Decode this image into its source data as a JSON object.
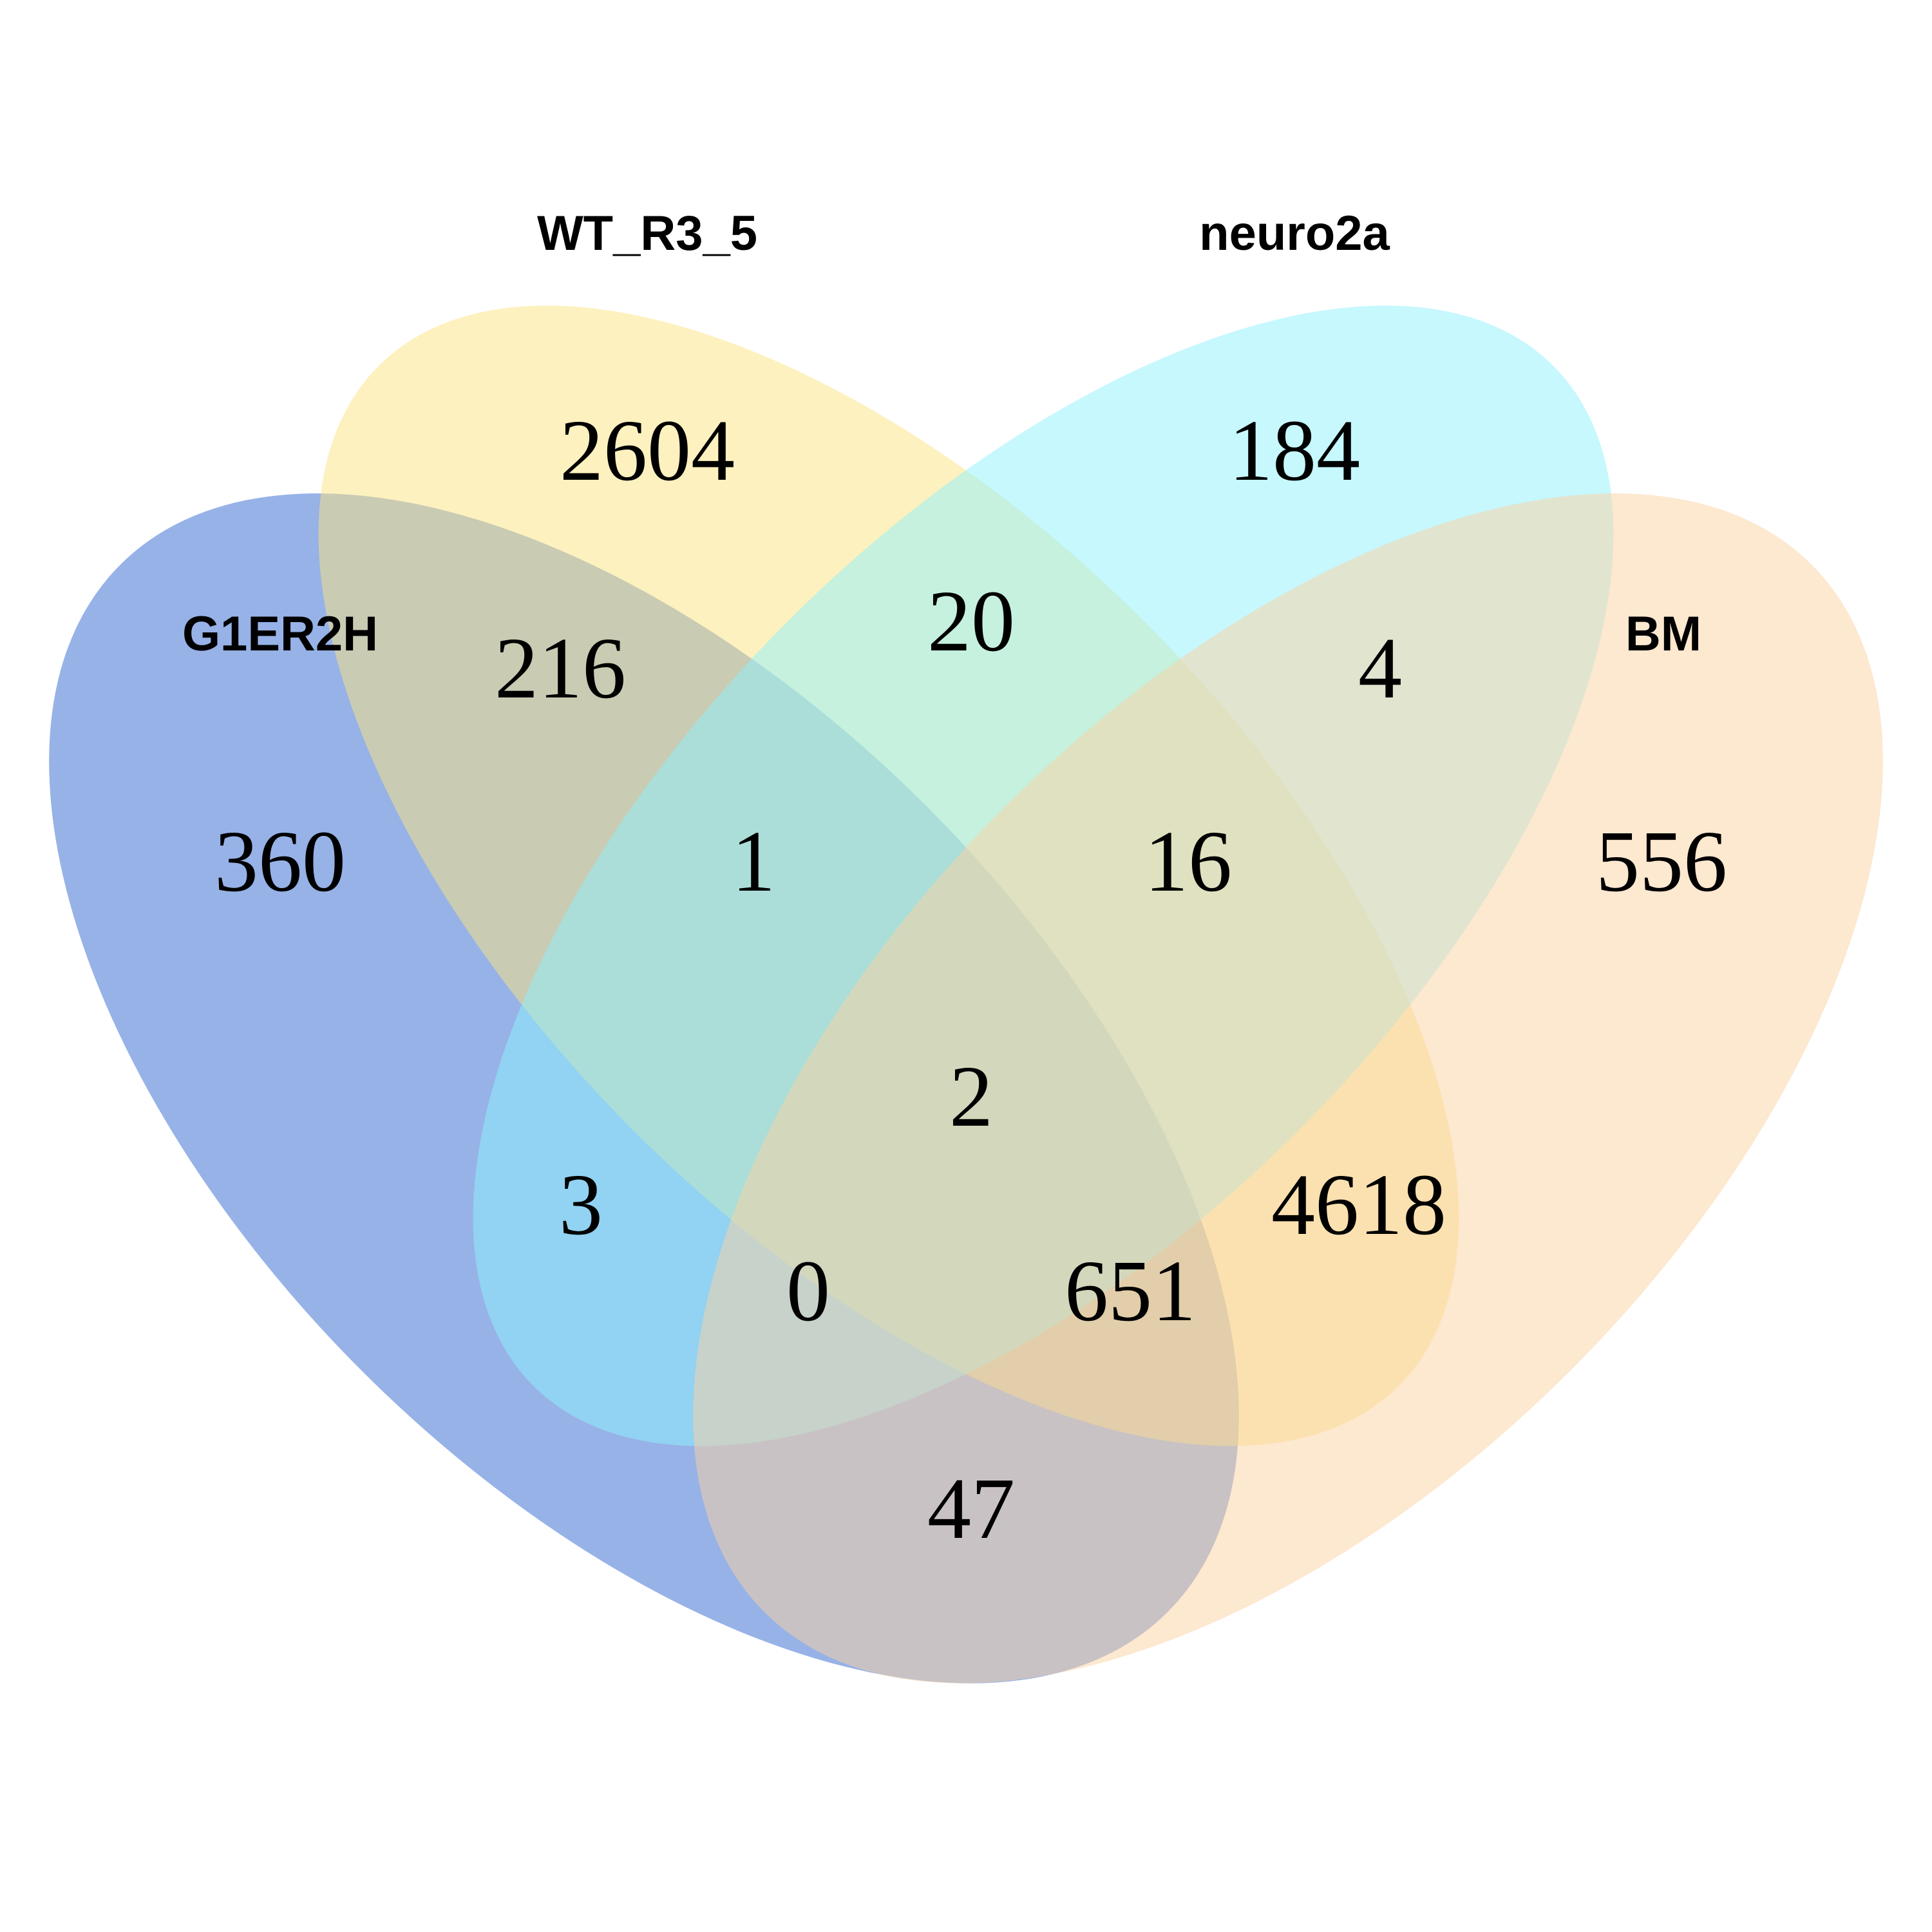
{
  "sets": [
    {
      "key": "g1er2h",
      "label": "G1ER2H",
      "color": "#2f66d0"
    },
    {
      "key": "wt",
      "label": "WT_R3_5",
      "color": "#fce37f"
    },
    {
      "key": "neuro2a",
      "label": "neuro2a",
      "color": "#8ef2fd"
    },
    {
      "key": "bm",
      "label": "BM",
      "color": "#fbd1a1"
    }
  ],
  "regions": [
    {
      "sets": [
        "wt"
      ],
      "count": "2604"
    },
    {
      "sets": [
        "neuro2a"
      ],
      "count": "184"
    },
    {
      "sets": [
        "g1er2h",
        "wt"
      ],
      "count": "216"
    },
    {
      "sets": [
        "wt",
        "neuro2a"
      ],
      "count": "20"
    },
    {
      "sets": [
        "neuro2a",
        "bm"
      ],
      "count": "4"
    },
    {
      "sets": [
        "g1er2h"
      ],
      "count": "360"
    },
    {
      "sets": [
        "g1er2h",
        "wt",
        "neuro2a"
      ],
      "count": "1"
    },
    {
      "sets": [
        "wt",
        "neuro2a",
        "bm"
      ],
      "count": "16"
    },
    {
      "sets": [
        "bm"
      ],
      "count": "556"
    },
    {
      "sets": [
        "g1er2h",
        "wt",
        "neuro2a",
        "bm"
      ],
      "count": "2"
    },
    {
      "sets": [
        "g1er2h",
        "neuro2a"
      ],
      "count": "3"
    },
    {
      "sets": [
        "wt",
        "bm"
      ],
      "count": "4618"
    },
    {
      "sets": [
        "g1er2h",
        "neuro2a",
        "bm"
      ],
      "count": "0"
    },
    {
      "sets": [
        "g1er2h",
        "wt",
        "bm"
      ],
      "count": "651"
    },
    {
      "sets": [
        "g1er2h",
        "bm"
      ],
      "count": "47"
    }
  ]
}
